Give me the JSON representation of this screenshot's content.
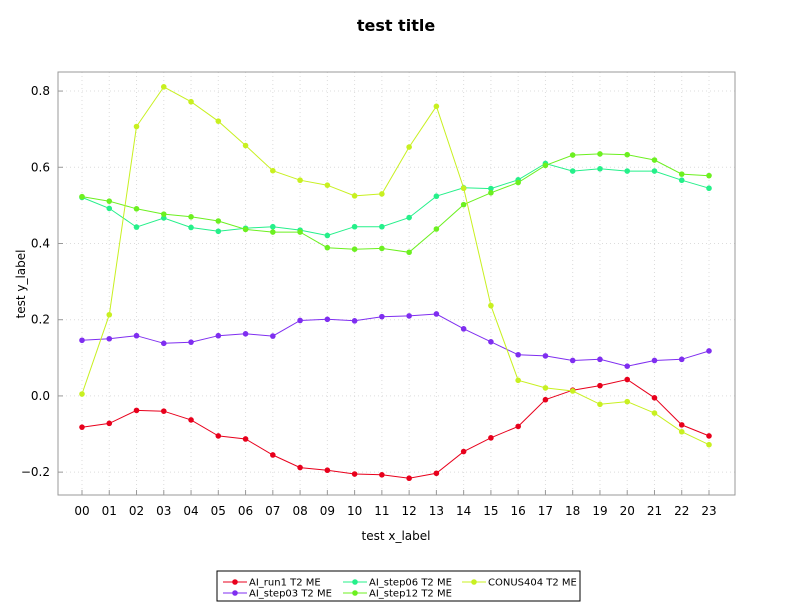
{
  "chart_data": {
    "type": "line",
    "title": "test title",
    "xlabel": "test x_label",
    "ylabel": "test y_label",
    "categories": [
      "00",
      "01",
      "02",
      "03",
      "04",
      "05",
      "06",
      "07",
      "08",
      "09",
      "10",
      "11",
      "12",
      "13",
      "14",
      "15",
      "16",
      "17",
      "18",
      "19",
      "20",
      "21",
      "22",
      "23"
    ],
    "ylim": [
      -0.26,
      0.85
    ],
    "yticks": [
      -0.2,
      0.0,
      0.2,
      0.4,
      0.6,
      0.8
    ],
    "ytick_labels": [
      "−0.2",
      "0.0",
      "0.2",
      "0.4",
      "0.6",
      "0.8"
    ],
    "grid": true,
    "legend_position": "bottom",
    "series": [
      {
        "name": "AI_run1 T2 ME",
        "color": "#e8001c",
        "values": [
          -0.082,
          -0.072,
          -0.038,
          -0.04,
          -0.063,
          -0.105,
          -0.113,
          -0.155,
          -0.188,
          -0.195,
          -0.205,
          -0.207,
          -0.216,
          -0.203,
          -0.146,
          -0.11,
          -0.08,
          -0.01,
          0.015,
          0.027,
          0.043,
          -0.005,
          -0.076,
          -0.105
        ]
      },
      {
        "name": "AI_step03 T2 ME",
        "color": "#7f2ef0",
        "values": [
          0.146,
          0.15,
          0.158,
          0.138,
          0.141,
          0.158,
          0.163,
          0.157,
          0.198,
          0.201,
          0.197,
          0.208,
          0.21,
          0.215,
          0.176,
          0.142,
          0.108,
          0.105,
          0.093,
          0.096,
          0.078,
          0.093,
          0.096,
          0.118
        ]
      },
      {
        "name": "AI_step06 T2 ME",
        "color": "#25f08a",
        "values": [
          0.521,
          0.492,
          0.443,
          0.467,
          0.442,
          0.432,
          0.44,
          0.444,
          0.435,
          0.421,
          0.444,
          0.444,
          0.468,
          0.524,
          0.546,
          0.544,
          0.567,
          0.61,
          0.59,
          0.596,
          0.59,
          0.59,
          0.566,
          0.545
        ]
      },
      {
        "name": "AI_step12 T2 ME",
        "color": "#6cf020",
        "values": [
          0.523,
          0.511,
          0.491,
          0.477,
          0.47,
          0.459,
          0.437,
          0.43,
          0.43,
          0.389,
          0.385,
          0.387,
          0.377,
          0.438,
          0.502,
          0.533,
          0.56,
          0.605,
          0.632,
          0.635,
          0.633,
          0.619,
          0.582,
          0.578
        ]
      },
      {
        "name": "CONUS404 T2 ME",
        "color": "#c8f020",
        "values": [
          0.005,
          0.213,
          0.707,
          0.811,
          0.772,
          0.721,
          0.657,
          0.591,
          0.566,
          0.553,
          0.525,
          0.53,
          0.653,
          0.76,
          0.545,
          0.237,
          0.041,
          0.021,
          0.013,
          -0.022,
          -0.015,
          -0.045,
          -0.094,
          -0.128
        ]
      }
    ]
  }
}
